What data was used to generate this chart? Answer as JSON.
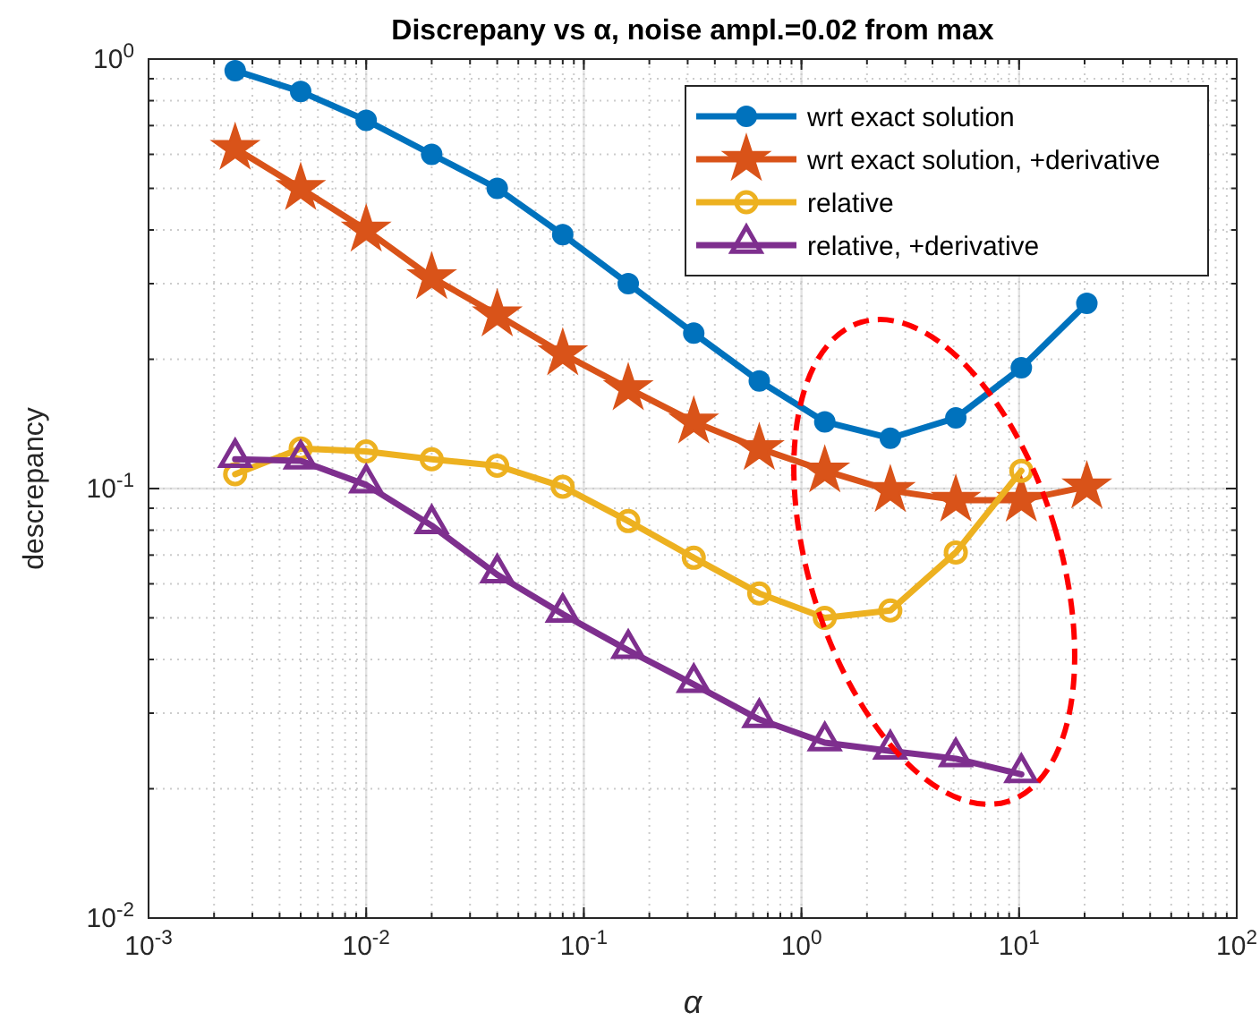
{
  "chart_data": {
    "type": "line",
    "title": "Discrepany vs α, noise ampl.=0.02 from max",
    "xlabel": "α",
    "ylabel": "descrepancy",
    "log": "xy",
    "grid": true,
    "legend": "top right",
    "x": [
      0.0025,
      0.005,
      0.01,
      0.02,
      0.04,
      0.08,
      0.16,
      0.32,
      0.64,
      1.28,
      2.56,
      5.12,
      10.24,
      20.48
    ],
    "xlim": [
      0.001,
      100
    ],
    "ylim": [
      0.01,
      1
    ],
    "xticks": [
      {
        "value": 0.001,
        "label": "10$^{-3}$"
      },
      {
        "value": 0.01,
        "label": "10$^{-2}$"
      },
      {
        "value": 0.1,
        "label": "10$^{-1}$"
      },
      {
        "value": 1,
        "label": "10$^{0}$"
      },
      {
        "value": 10,
        "label": "10$^{1}$"
      },
      {
        "value": 100,
        "label": "10$^{2}$"
      }
    ],
    "yticks": [
      {
        "value": 0.01,
        "label": "10$^{-2}$"
      },
      {
        "value": 0.1,
        "label": "10$^{-1}$"
      },
      {
        "value": 1,
        "label": "10$^{0}$"
      }
    ],
    "series": [
      {
        "name": "wrt exact solution",
        "color": "#0072bd",
        "marker": "circle",
        "values": [
          0.94,
          0.84,
          0.72,
          0.6,
          0.5,
          0.39,
          0.3,
          0.23,
          0.178,
          0.143,
          0.131,
          0.146,
          0.191,
          0.27
        ]
      },
      {
        "name": "wrt exact solution, +derivative",
        "color": "#d95319",
        "marker": "star",
        "values": [
          0.62,
          0.5,
          0.4,
          0.31,
          0.254,
          0.206,
          0.171,
          0.143,
          0.124,
          0.11,
          0.099,
          0.094,
          0.094,
          0.101
        ]
      },
      {
        "name": "relative",
        "color": "#edb120",
        "marker": "circle-open",
        "values": [
          0.108,
          0.124,
          0.122,
          0.117,
          0.113,
          0.101,
          0.084,
          0.069,
          0.057,
          0.05,
          0.052,
          0.071,
          0.11,
          null
        ]
      },
      {
        "name": "relative, +derivative",
        "color": "#7e2f8e",
        "marker": "triangle-open",
        "values": [
          0.117,
          0.116,
          0.102,
          0.082,
          0.063,
          0.051,
          0.042,
          0.035,
          0.029,
          0.0256,
          0.0245,
          0.0235,
          0.0216,
          null
        ]
      }
    ]
  }
}
